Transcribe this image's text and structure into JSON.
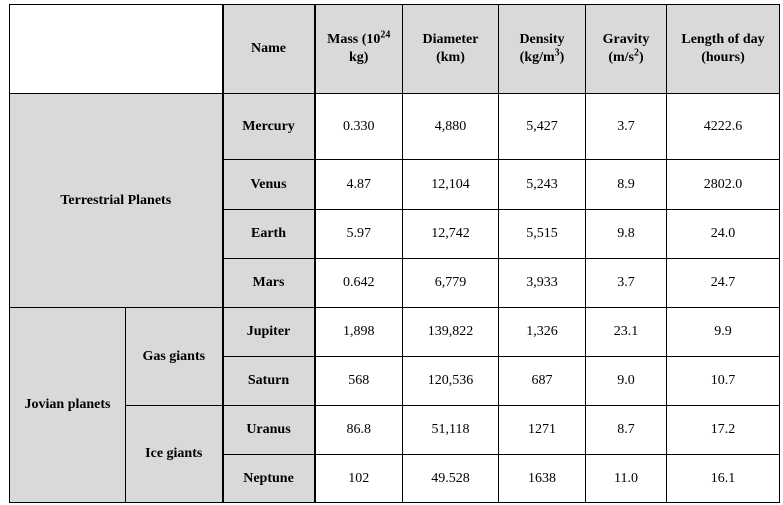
{
  "headers": {
    "name": "Name",
    "mass_base": "Mass (10",
    "mass_exp": "24",
    "mass_unit": "kg)",
    "diameter": "Diameter (km)",
    "density_base": "Density (kg/m",
    "density_exp": "3",
    "density_close": ")",
    "gravity_base": "Gravity (m/s",
    "gravity_exp": "2",
    "gravity_close": ")",
    "length_of_day": "Length of day (hours)"
  },
  "groups": {
    "terrestrial": "Terrestrial Planets",
    "jovian": "Jovian planets",
    "gas": "Gas giants",
    "ice": "Ice giants"
  },
  "planets": [
    {
      "name": "Mercury",
      "mass": "0.330",
      "diameter": "4,880",
      "density": "5,427",
      "gravity": "3.7",
      "day": "4222.6"
    },
    {
      "name": "Venus",
      "mass": "4.87",
      "diameter": "12,104",
      "density": "5,243",
      "gravity": "8.9",
      "day": "2802.0"
    },
    {
      "name": "Earth",
      "mass": "5.97",
      "diameter": "12,742",
      "density": "5,515",
      "gravity": "9.8",
      "day": "24.0"
    },
    {
      "name": "Mars",
      "mass": "0.642",
      "diameter": "6,779",
      "density": "3,933",
      "gravity": "3.7",
      "day": "24.7"
    },
    {
      "name": "Jupiter",
      "mass": "1,898",
      "diameter": "139,822",
      "density": "1,326",
      "gravity": "23.1",
      "day": "9.9"
    },
    {
      "name": "Saturn",
      "mass": "568",
      "diameter": "120,536",
      "density": "687",
      "gravity": "9.0",
      "day": "10.7"
    },
    {
      "name": "Uranus",
      "mass": "86.8",
      "diameter": "51,118",
      "density": "1271",
      "gravity": "8.7",
      "day": "17.2"
    },
    {
      "name": "Neptune",
      "mass": "102",
      "diameter": "49.528",
      "density": "1638",
      "gravity": "11.0",
      "day": "16.1"
    }
  ]
}
